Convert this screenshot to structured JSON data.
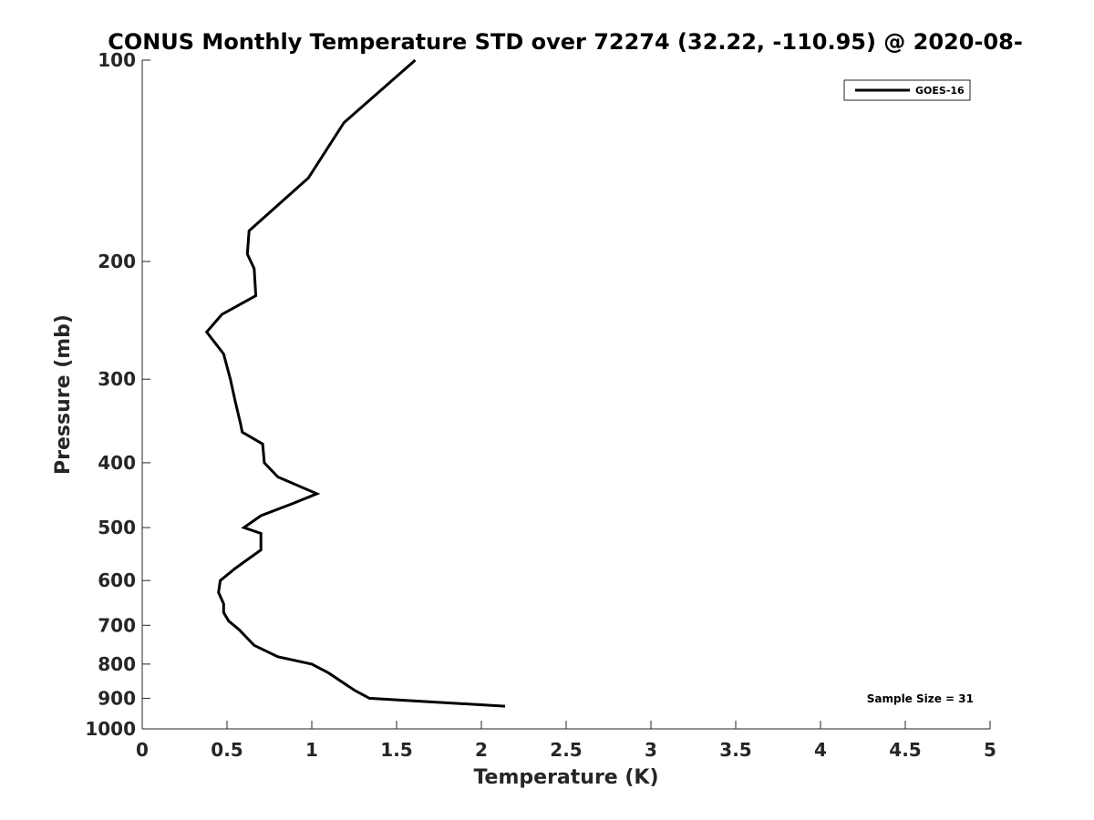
{
  "chart_data": {
    "type": "line",
    "title": "CONUS Monthly Temperature STD over 72274 (32.22, -110.95) @ 2020-08-",
    "xlabel": "Temperature (K)",
    "ylabel": "Pressure (mb)",
    "xlim": [
      0,
      5
    ],
    "ylim": [
      100,
      1000
    ],
    "y_scale": "log",
    "y_reversed": true,
    "grid": false,
    "legend_position": "top-right",
    "x_ticks": [
      0,
      0.5,
      1,
      1.5,
      2,
      2.5,
      3,
      3.5,
      4,
      4.5,
      5
    ],
    "x_tick_labels": [
      "0",
      "0.5",
      "1",
      "1.5",
      "2",
      "2.5",
      "3",
      "3.5",
      "4",
      "4.5",
      "5"
    ],
    "y_ticks": [
      100,
      200,
      300,
      400,
      500,
      600,
      700,
      800,
      900,
      1000
    ],
    "y_tick_labels": [
      "100",
      "200",
      "300",
      "400",
      "500",
      "600",
      "700",
      "800",
      "900",
      "1000"
    ],
    "series": [
      {
        "name": "GOES-16",
        "color": "#000000",
        "points": [
          [
            1.61,
            100
          ],
          [
            1.19,
            124
          ],
          [
            0.98,
            150
          ],
          [
            0.63,
            180
          ],
          [
            0.62,
            195
          ],
          [
            0.66,
            205
          ],
          [
            0.67,
            225
          ],
          [
            0.47,
            240
          ],
          [
            0.38,
            255
          ],
          [
            0.48,
            275
          ],
          [
            0.52,
            300
          ],
          [
            0.55,
            325
          ],
          [
            0.58,
            350
          ],
          [
            0.59,
            360
          ],
          [
            0.71,
            375
          ],
          [
            0.72,
            400
          ],
          [
            0.8,
            420
          ],
          [
            1.03,
            445
          ],
          [
            0.89,
            460
          ],
          [
            0.7,
            480
          ],
          [
            0.6,
            500
          ],
          [
            0.7,
            510
          ],
          [
            0.7,
            540
          ],
          [
            0.55,
            575
          ],
          [
            0.46,
            600
          ],
          [
            0.45,
            625
          ],
          [
            0.48,
            650
          ],
          [
            0.48,
            670
          ],
          [
            0.51,
            690
          ],
          [
            0.57,
            710
          ],
          [
            0.66,
            750
          ],
          [
            0.8,
            780
          ],
          [
            1.0,
            800
          ],
          [
            1.1,
            825
          ],
          [
            1.25,
            875
          ],
          [
            1.34,
            900
          ],
          [
            2.14,
            925
          ]
        ]
      }
    ],
    "annotations": [
      {
        "text": "Sample Size = 31",
        "position": "bottom-right"
      }
    ]
  }
}
